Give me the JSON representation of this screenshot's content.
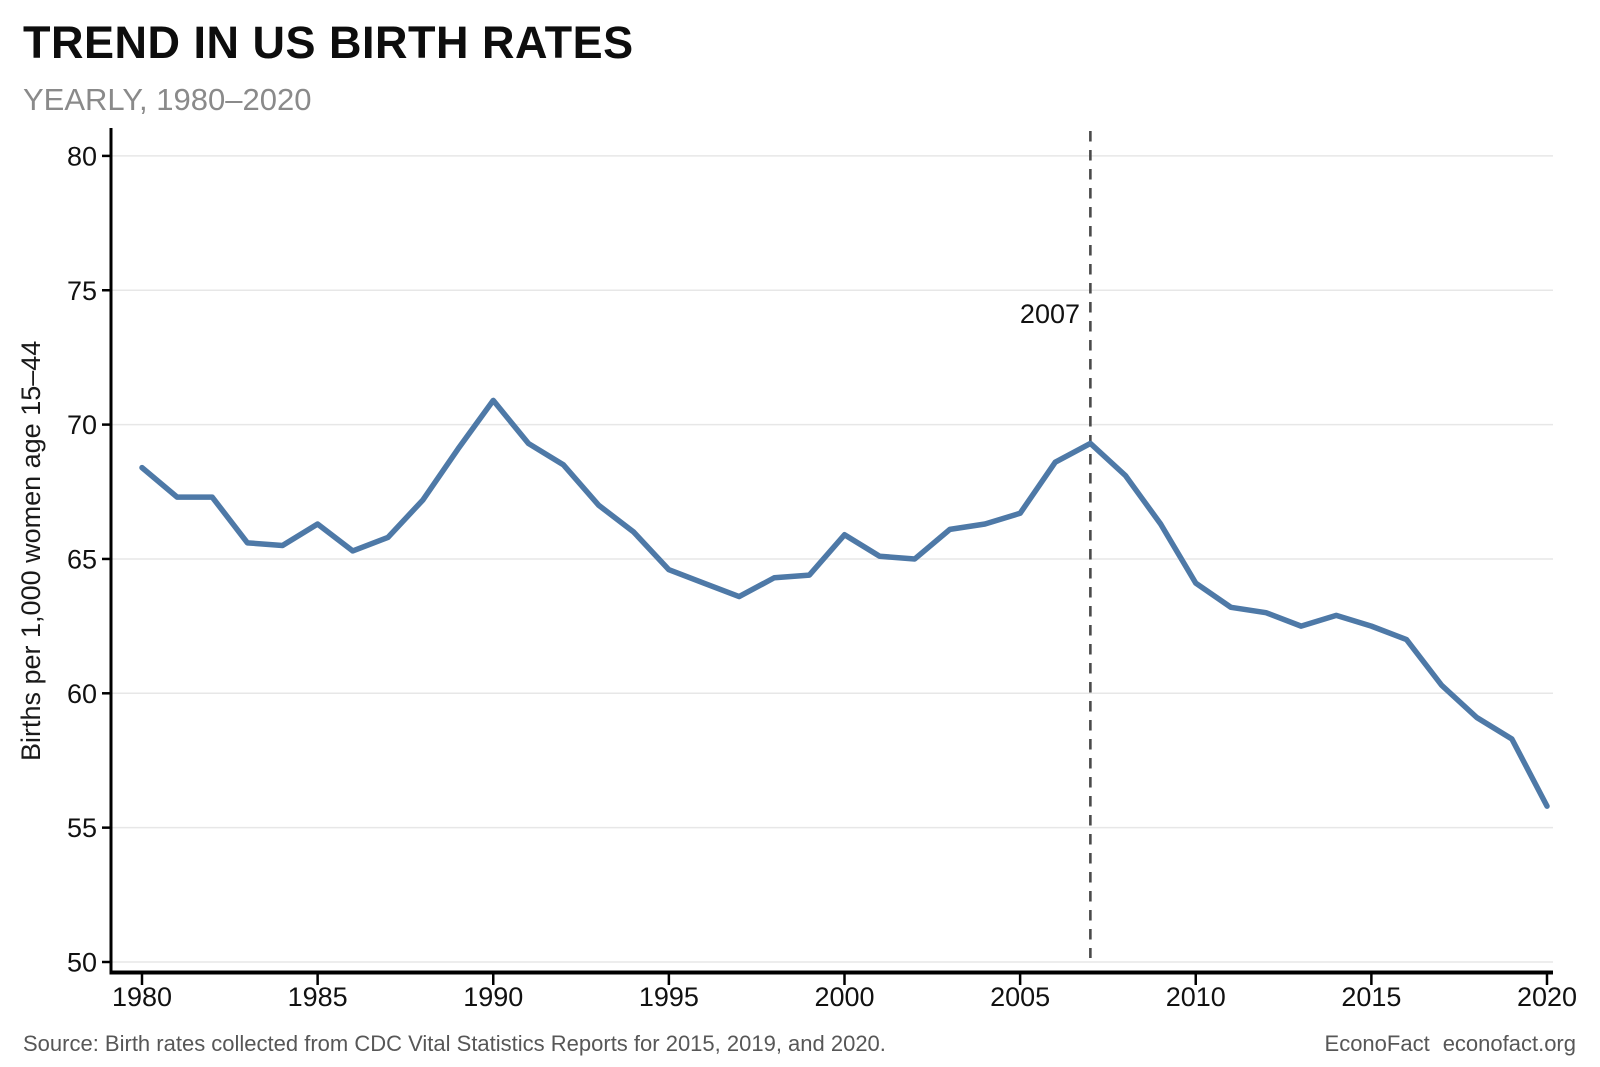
{
  "header": {
    "title": "TREND IN US BIRTH RATES",
    "subtitle": "YEARLY, 1980–2020"
  },
  "chart_data": {
    "type": "line",
    "title": "TREND IN US BIRTH RATES",
    "subtitle": "YEARLY, 1980–2020",
    "xlabel": "",
    "ylabel": "Births per 1,000 women age 15–44",
    "x": [
      1980,
      1981,
      1982,
      1983,
      1984,
      1985,
      1986,
      1987,
      1988,
      1989,
      1990,
      1991,
      1992,
      1993,
      1994,
      1995,
      1996,
      1997,
      1998,
      1999,
      2000,
      2001,
      2002,
      2003,
      2004,
      2005,
      2006,
      2007,
      2008,
      2009,
      2010,
      2011,
      2012,
      2013,
      2014,
      2015,
      2016,
      2017,
      2018,
      2019,
      2020
    ],
    "series": [
      {
        "name": "Births per 1,000 women age 15–44",
        "values": [
          68.4,
          67.3,
          67.3,
          65.6,
          65.5,
          66.3,
          65.3,
          65.8,
          67.2,
          69.1,
          70.9,
          69.3,
          68.5,
          67.0,
          66.0,
          64.6,
          64.1,
          63.6,
          64.3,
          64.4,
          65.9,
          65.1,
          65.0,
          66.1,
          66.3,
          66.7,
          68.6,
          69.3,
          68.1,
          66.3,
          64.1,
          63.2,
          63.0,
          62.5,
          62.9,
          62.5,
          62.0,
          60.3,
          59.1,
          58.3,
          55.8
        ]
      }
    ],
    "xlim": [
      1980,
      2020
    ],
    "ylim": [
      50,
      80
    ],
    "xticks": [
      1980,
      1985,
      1990,
      1995,
      2000,
      2005,
      2010,
      2015,
      2020
    ],
    "yticks": [
      50,
      55,
      60,
      65,
      70,
      75,
      80
    ],
    "grid": "horizontal",
    "legend": "none",
    "line_color": "#4e79a7",
    "grid_color": "#e7e7e7",
    "axis_color": "#000000",
    "tick_label_color": "#111111",
    "annotation": {
      "label": "2007",
      "x": 2007,
      "line_style": "dashed",
      "line_color": "#4a4a4a"
    }
  },
  "footer": {
    "source": "Source: Birth rates collected from CDC Vital Statistics Reports for 2015, 2019, and 2020.",
    "brand": "EconoFact",
    "brand_url": "econofact.org"
  }
}
